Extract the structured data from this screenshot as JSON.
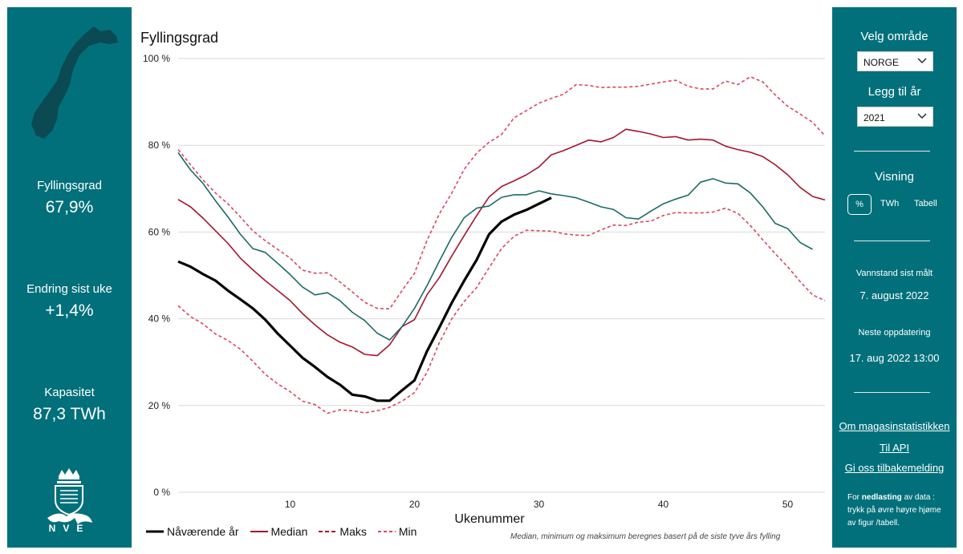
{
  "left": {
    "stats": [
      {
        "label": "Fyllingsgrad",
        "value": "67,9%"
      },
      {
        "label": "Endring sist uke",
        "value": "+1,4%"
      },
      {
        "label": "Kapasitet",
        "value": "87,3 TWh"
      }
    ],
    "logo_text": "NVE",
    "map_icon": "norway-map-icon",
    "logo_icon": "nve-crest-icon"
  },
  "right": {
    "area_title": "Velg område",
    "area_value": "NORGE",
    "year_title": "Legg til år",
    "year_value": "2021",
    "view_title": "Visning",
    "view_options": [
      "%",
      "TWh",
      "Tabell"
    ],
    "view_selected": "%",
    "measured_label": "Vannstand sist målt",
    "measured_value": "7. august 2022",
    "next_label": "Neste oppdatering",
    "next_value": "17. aug 2022 13:00",
    "links": [
      "Om magasinstatistikken",
      "Til API",
      "Gi oss tilbakemelding"
    ],
    "note_prefix": "For ",
    "note_bold": "nedlasting",
    "note_suffix": " av data : trykk på øvre høyre hjøme av figur /tabell."
  },
  "colors": {
    "panel": "#02707a",
    "current": "#000000",
    "median": "#a5152d",
    "extreme": "#d8485f",
    "year_2021": "#1d6b63",
    "grid": "#d9d9d9"
  },
  "chart_data": {
    "type": "line",
    "title": "Fyllingsgrad",
    "xlabel": "Ukenummer",
    "ylabel": "",
    "xlim": [
      1,
      53
    ],
    "ylim": [
      0,
      100
    ],
    "x_ticks": [
      10,
      20,
      30,
      40,
      50
    ],
    "y_ticks": [
      "0 %",
      "20 %",
      "40 %",
      "60 %",
      "80 %",
      "100 %"
    ],
    "grid": true,
    "legend_position": "bottom",
    "footnote": "Median, minimum og maksimum beregnes basert på de siste tyve års fylling",
    "series": [
      {
        "name": "Nåværende år",
        "style": "solid-thick",
        "color": "#000000",
        "x": [
          1,
          2,
          3,
          4,
          5,
          6,
          7,
          8,
          9,
          10,
          11,
          12,
          13,
          14,
          15,
          16,
          17,
          18,
          19,
          20,
          21,
          22,
          23,
          24,
          25,
          26,
          27,
          28,
          29,
          30,
          31
        ],
        "y": [
          53.2,
          52,
          50.3,
          48.8,
          46.5,
          44.5,
          42.4,
          39.8,
          36.6,
          33.8,
          31,
          28.9,
          26.6,
          24.8,
          22.5,
          22.1,
          21.1,
          21.1,
          23.5,
          25.8,
          32.5,
          38,
          43.7,
          48.8,
          53.6,
          59.5,
          62.4,
          64,
          65.1,
          66.5,
          67.9
        ]
      },
      {
        "name": "Median",
        "style": "solid",
        "color": "#a5152d",
        "x": [
          1,
          2,
          3,
          4,
          5,
          6,
          7,
          8,
          9,
          10,
          11,
          12,
          13,
          14,
          15,
          16,
          17,
          18,
          19,
          20,
          21,
          22,
          23,
          24,
          25,
          26,
          27,
          28,
          29,
          30,
          31,
          32,
          33,
          34,
          35,
          36,
          37,
          38,
          39,
          40,
          41,
          42,
          43,
          44,
          45,
          46,
          47,
          48,
          49,
          50,
          51,
          52,
          53
        ],
        "y": [
          67.5,
          65.8,
          63.2,
          60.3,
          57.4,
          54,
          51.3,
          48.8,
          46.5,
          44.2,
          41.2,
          38.6,
          36.3,
          34.6,
          33.5,
          31.8,
          31.5,
          34,
          38.2,
          39.8,
          45.5,
          49.5,
          54.5,
          59.2,
          63.8,
          68.1,
          70.5,
          71.8,
          73.2,
          75,
          77.8,
          78.8,
          80,
          81.2,
          80.8,
          81.8,
          83.7,
          83.2,
          82.6,
          81.8,
          82,
          81.2,
          81.4,
          81.2,
          79.8,
          79,
          78.4,
          77.4,
          75.5,
          73.2,
          70.3,
          68.2,
          67.4
        ]
      },
      {
        "name": "Maks",
        "style": "dashed",
        "color": "#d8485f",
        "x": [
          1,
          2,
          3,
          4,
          5,
          6,
          7,
          8,
          9,
          10,
          11,
          12,
          13,
          14,
          15,
          16,
          17,
          18,
          19,
          20,
          21,
          22,
          23,
          24,
          25,
          26,
          27,
          28,
          29,
          30,
          31,
          32,
          33,
          34,
          35,
          36,
          37,
          38,
          39,
          40,
          41,
          42,
          43,
          44,
          45,
          46,
          47,
          48,
          49,
          50,
          51,
          52,
          53
        ],
        "y": [
          79,
          75.5,
          72,
          69,
          66.5,
          63.5,
          60.3,
          58,
          56,
          54,
          51.2,
          50.5,
          50.6,
          48.5,
          46.2,
          43.8,
          42.4,
          42.3,
          46.5,
          50.5,
          58,
          64.2,
          69,
          74.5,
          78.2,
          80.7,
          82.5,
          86.3,
          88,
          89.7,
          90.8,
          91.8,
          94,
          93.8,
          93.3,
          93.4,
          93.4,
          93.6,
          94.1,
          94.6,
          95,
          93.6,
          93,
          93,
          94.8,
          94,
          95.8,
          94.6,
          91.6,
          89,
          87.2,
          85.3,
          82.2
        ]
      },
      {
        "name": "Min",
        "style": "dashed",
        "color": "#d8485f",
        "x": [
          1,
          2,
          3,
          4,
          5,
          6,
          7,
          8,
          9,
          10,
          11,
          12,
          13,
          14,
          15,
          16,
          17,
          18,
          19,
          20,
          21,
          22,
          23,
          24,
          25,
          26,
          27,
          28,
          29,
          30,
          31,
          32,
          33,
          34,
          35,
          36,
          37,
          38,
          39,
          40,
          41,
          42,
          43,
          44,
          45,
          46,
          47,
          48,
          49,
          50,
          51,
          52,
          53
        ],
        "y": [
          43,
          40.5,
          38.8,
          36.5,
          35,
          33,
          30.2,
          27.2,
          25,
          23.2,
          21,
          20.2,
          18.2,
          19,
          18.8,
          18.3,
          18.8,
          19.6,
          21,
          23,
          27.6,
          34.5,
          40,
          44,
          47.2,
          51.8,
          56.2,
          59,
          60.4,
          60.3,
          60.2,
          59.6,
          59.3,
          59.2,
          60.5,
          61.6,
          61.5,
          62.3,
          62.5,
          63.8,
          64.5,
          64.4,
          64.4,
          64.6,
          65.5,
          64.3,
          61.5,
          58.2,
          55,
          52,
          48.6,
          45.5,
          44.2
        ]
      },
      {
        "name": "2021",
        "style": "solid",
        "color": "#1d6b63",
        "x": [
          1,
          2,
          3,
          4,
          5,
          6,
          7,
          8,
          9,
          10,
          11,
          12,
          13,
          14,
          15,
          16,
          17,
          18,
          19,
          20,
          21,
          22,
          23,
          24,
          25,
          26,
          27,
          28,
          29,
          30,
          31,
          32,
          33,
          34,
          35,
          36,
          37,
          38,
          39,
          40,
          41,
          42,
          43,
          44,
          45,
          46,
          47,
          48,
          49,
          50,
          51,
          52
        ],
        "y": [
          78.3,
          74.3,
          71.2,
          67.2,
          63.5,
          59.5,
          56.2,
          55.3,
          52.8,
          50.2,
          47.3,
          45.5,
          46,
          44.2,
          41.5,
          39.6,
          36.7,
          35.1,
          38.2,
          42.4,
          47.6,
          53.3,
          58.8,
          63.3,
          65.5,
          66,
          68,
          68.6,
          68.6,
          69.5,
          68.8,
          68.4,
          67.9,
          66.9,
          65.8,
          65.2,
          63.3,
          63,
          64.8,
          66.5,
          67.6,
          68.5,
          71.5,
          72.3,
          71.3,
          71.1,
          69,
          65.8,
          62,
          60.8,
          57.6,
          56
        ]
      }
    ]
  }
}
